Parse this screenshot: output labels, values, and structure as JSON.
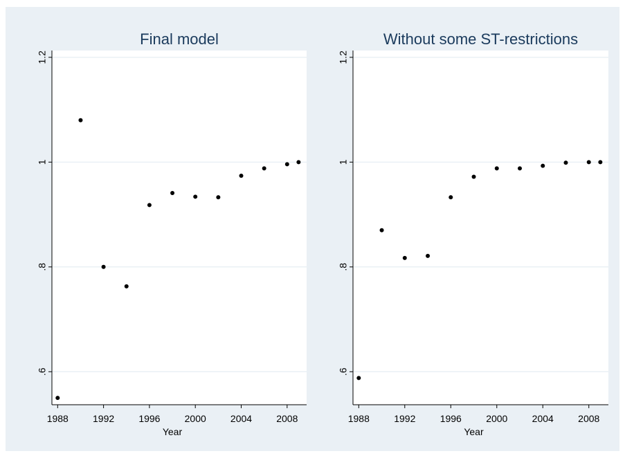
{
  "chart_data": [
    {
      "type": "scatter",
      "title": "Final model",
      "x_label": "Year",
      "color": "#000000",
      "grid": true,
      "x": [
        1988,
        1990,
        1992,
        1994,
        1996,
        1998,
        2000,
        2002,
        2004,
        2006,
        2008,
        2009
      ],
      "values": [
        0.55,
        1.08,
        0.8,
        0.763,
        0.918,
        0.941,
        0.934,
        0.933,
        0.974,
        0.988,
        0.996,
        1.0
      ],
      "xlim": [
        1987.5,
        2009.7
      ],
      "ylim": [
        0.537,
        1.213
      ],
      "xticks": [
        1988,
        1992,
        1996,
        2000,
        2004,
        2008
      ],
      "yticks": [
        {
          "value": 0.6,
          "label": ".6"
        },
        {
          "value": 0.8,
          "label": ".8"
        },
        1,
        1.2
      ]
    },
    {
      "type": "scatter",
      "title": "Without some ST-restrictions",
      "x_label": "Year",
      "color": "#000000",
      "grid": true,
      "x": [
        1988,
        1990,
        1992,
        1994,
        1996,
        1998,
        2000,
        2002,
        2004,
        2006,
        2008,
        2009
      ],
      "values": [
        0.588,
        0.87,
        0.817,
        0.821,
        0.933,
        0.972,
        0.988,
        0.988,
        0.993,
        0.999,
        1.0,
        1.0
      ],
      "xlim": [
        1987.5,
        2009.7
      ],
      "ylim": [
        0.537,
        1.213
      ],
      "xticks": [
        1988,
        1992,
        1996,
        2000,
        2004,
        2008
      ],
      "yticks": [
        {
          "value": 0.6,
          "label": ".6"
        },
        {
          "value": 0.8,
          "label": ".8"
        },
        1,
        1.2
      ]
    }
  ]
}
